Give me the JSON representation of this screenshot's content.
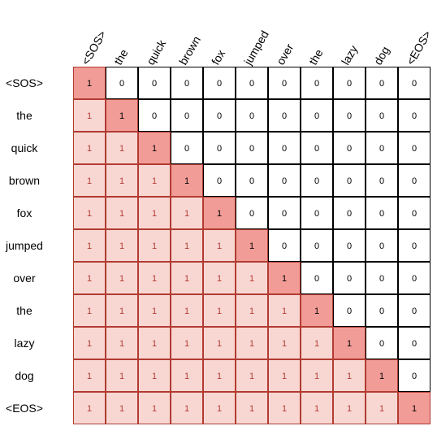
{
  "tokens": [
    "<SOS>",
    "the",
    "quick",
    "brown",
    "fox",
    "jumped",
    "over",
    "the",
    "lazy",
    "dog",
    "<EOS>"
  ],
  "matrix": [
    [
      1,
      0,
      0,
      0,
      0,
      0,
      0,
      0,
      0,
      0,
      0
    ],
    [
      1,
      1,
      0,
      0,
      0,
      0,
      0,
      0,
      0,
      0,
      0
    ],
    [
      1,
      1,
      1,
      0,
      0,
      0,
      0,
      0,
      0,
      0,
      0
    ],
    [
      1,
      1,
      1,
      1,
      0,
      0,
      0,
      0,
      0,
      0,
      0
    ],
    [
      1,
      1,
      1,
      1,
      1,
      0,
      0,
      0,
      0,
      0,
      0
    ],
    [
      1,
      1,
      1,
      1,
      1,
      1,
      0,
      0,
      0,
      0,
      0
    ],
    [
      1,
      1,
      1,
      1,
      1,
      1,
      1,
      0,
      0,
      0,
      0
    ],
    [
      1,
      1,
      1,
      1,
      1,
      1,
      1,
      1,
      0,
      0,
      0
    ],
    [
      1,
      1,
      1,
      1,
      1,
      1,
      1,
      1,
      1,
      0,
      0
    ],
    [
      1,
      1,
      1,
      1,
      1,
      1,
      1,
      1,
      1,
      1,
      0
    ],
    [
      1,
      1,
      1,
      1,
      1,
      1,
      1,
      1,
      1,
      1,
      1
    ]
  ],
  "colors": {
    "diagonal_fill": "#f19c96",
    "lower_fill": "#f8d7d3",
    "cell_border_red": "#b23b32",
    "zero_fill": "#ffffff"
  }
}
